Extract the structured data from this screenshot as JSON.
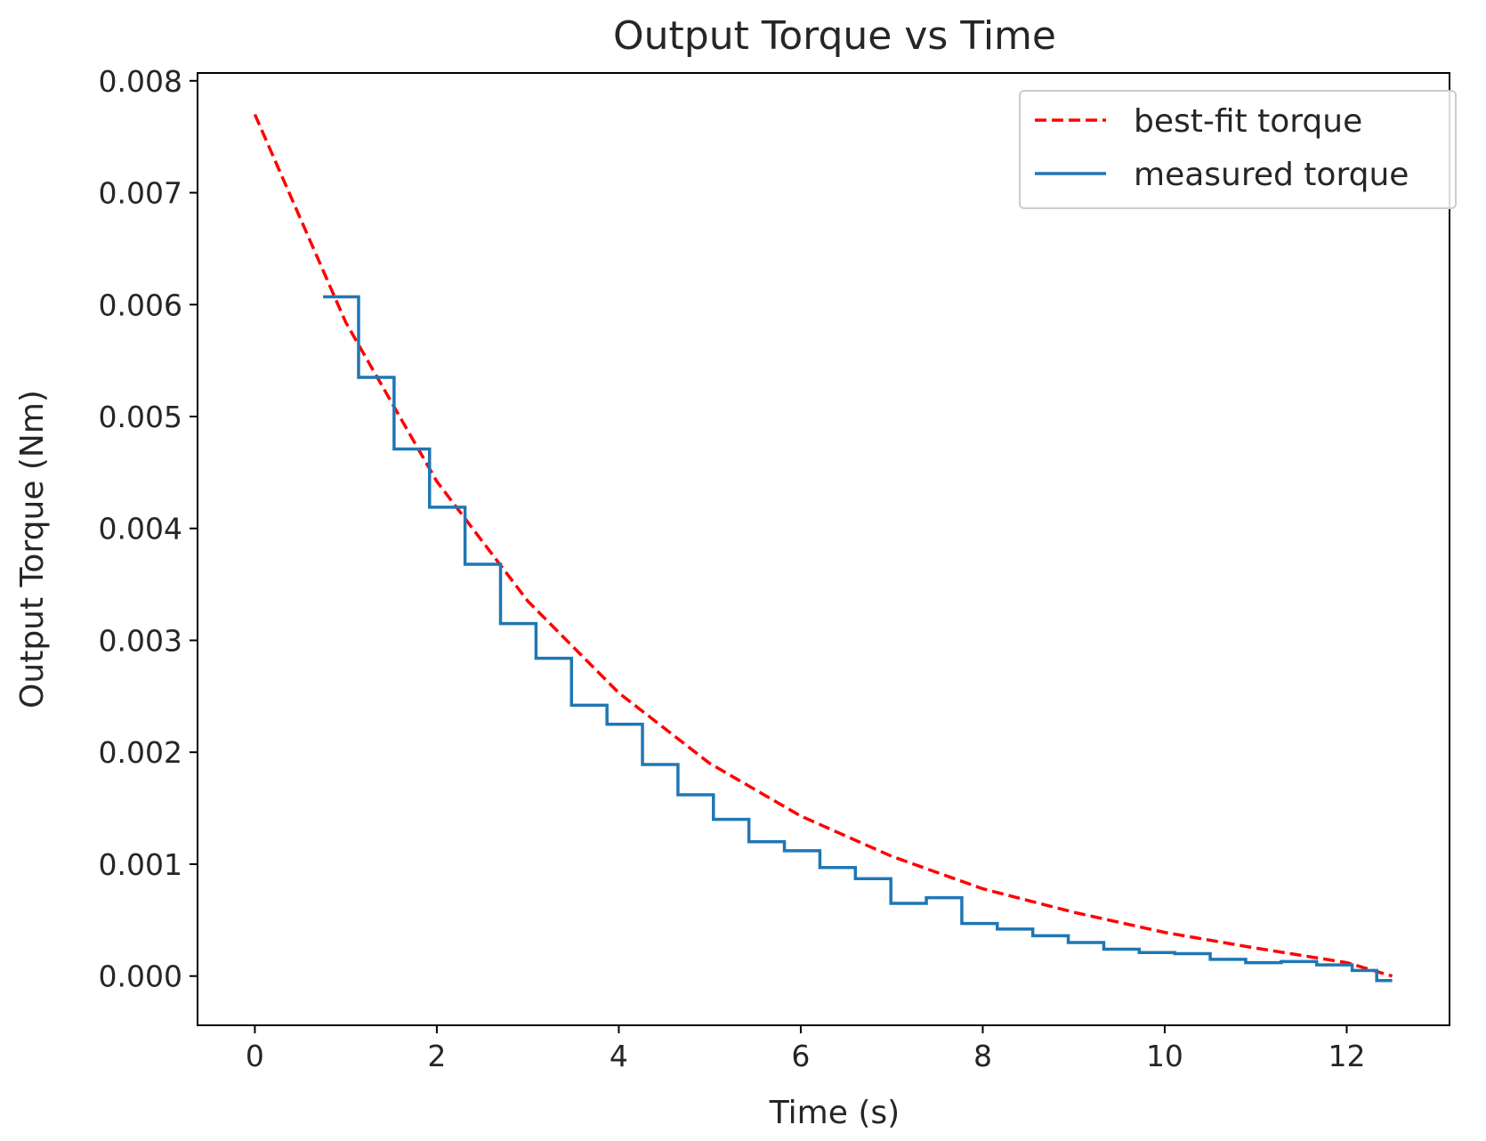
{
  "chart_data": {
    "type": "line",
    "title": "Output Torque vs Time",
    "xlabel": "Time (s)",
    "ylabel": "Output Torque (Nm)",
    "xlim": [
      -0.63,
      13.13
    ],
    "ylim": [
      -0.00044,
      0.00807
    ],
    "xticks": [
      0,
      2,
      4,
      6,
      8,
      10,
      12
    ],
    "xtick_labels": [
      "0",
      "2",
      "4",
      "6",
      "8",
      "10",
      "12"
    ],
    "yticks": [
      0.0,
      0.001,
      0.002,
      0.003,
      0.004,
      0.005,
      0.006,
      0.007,
      0.008
    ],
    "ytick_labels": [
      "0.000",
      "0.001",
      "0.002",
      "0.003",
      "0.004",
      "0.005",
      "0.006",
      "0.007",
      "0.008"
    ],
    "grid": false,
    "legend_position": "top-right",
    "series": [
      {
        "name": "best-fit torque",
        "style": "dashed",
        "color": "#ff0000",
        "model": "exponential",
        "x_range": [
          0,
          12.5
        ],
        "x": [
          0,
          1,
          2,
          3,
          4,
          5,
          6,
          7,
          8,
          9,
          10,
          11,
          12,
          12.5
        ],
        "values": [
          0.0077,
          0.00584,
          0.00442,
          0.00335,
          0.00253,
          0.0019,
          0.00143,
          0.00107,
          0.00078,
          0.00057,
          0.00039,
          0.00025,
          0.00012,
          0.0
        ]
      },
      {
        "name": "measured torque",
        "style": "step",
        "color": "#1f77b4",
        "x": [
          0.75,
          1.14,
          1.53,
          1.92,
          2.31,
          2.7,
          3.09,
          3.48,
          3.87,
          4.26,
          4.65,
          5.04,
          5.43,
          5.82,
          6.21,
          6.6,
          6.99,
          7.38,
          7.77,
          8.16,
          8.55,
          8.94,
          9.33,
          9.72,
          10.11,
          10.5,
          10.89,
          11.28,
          11.67,
          12.06,
          12.33,
          12.5
        ],
        "values": [
          0.00607,
          0.00535,
          0.00471,
          0.00419,
          0.00368,
          0.00315,
          0.00284,
          0.00242,
          0.00225,
          0.00189,
          0.00162,
          0.0014,
          0.0012,
          0.00112,
          0.00097,
          0.00087,
          0.00065,
          0.0007,
          0.00047,
          0.00042,
          0.00036,
          0.0003,
          0.00024,
          0.00021,
          0.0002,
          0.00015,
          0.00012,
          0.00013,
          0.0001,
          5e-05,
          -4e-05,
          -4e-05
        ]
      }
    ]
  }
}
